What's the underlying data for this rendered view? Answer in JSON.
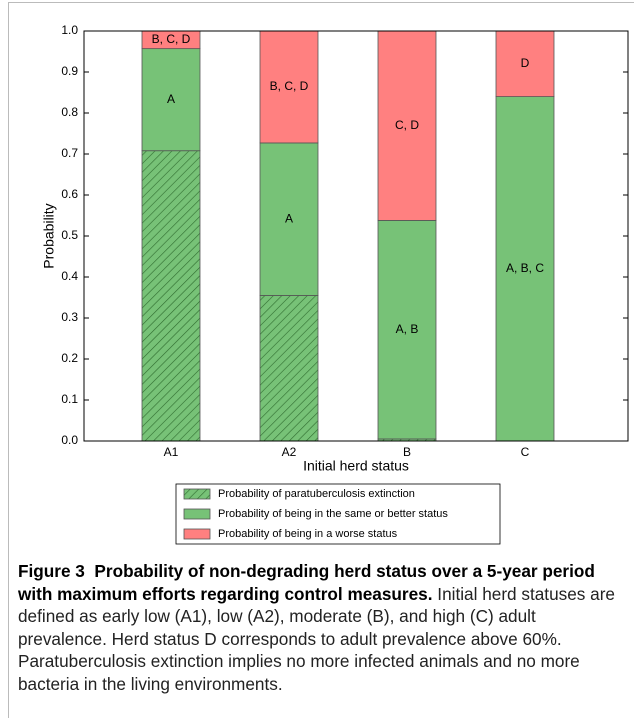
{
  "chart_data": {
    "type": "stacked_bar",
    "ylabel": "Probability",
    "xlabel": "Initial herd status",
    "categories": [
      "A1",
      "A2",
      "B",
      "C"
    ],
    "series": [
      {
        "name": "Probability of paratuberculosis extinction",
        "color": "#77c277",
        "hatch": true,
        "values": [
          0.708,
          0.355,
          0.005,
          0
        ]
      },
      {
        "name": "Probability of being in the same or better status",
        "color": "#77c277",
        "values": [
          0.249,
          0.372,
          0.533,
          0.84
        ],
        "labels": [
          "A",
          "A",
          "A, B",
          "A, B, C"
        ]
      },
      {
        "name": "Probability of being in a worse status",
        "color": "#ff8080",
        "values": [
          0.043,
          0.273,
          0.462,
          0.16
        ],
        "labels": [
          "B, C, D",
          "B, C, D",
          "C, D",
          "D"
        ]
      }
    ],
    "ylim": [
      0,
      1
    ],
    "yticks": [
      {
        "value": 0,
        "label": "0.0"
      },
      0.1,
      0.2,
      0.3,
      0.4,
      0.5,
      0.6,
      0.7,
      0.8,
      0.9,
      {
        "value": 1,
        "label": "1.0"
      }
    ],
    "legend": "bottom"
  },
  "caption": {
    "label": "Figure 3",
    "title": "Probability of non-degrading herd status over a 5-year period with maximum efforts regarding control measures.",
    "text": "Initial herd statuses are defined as early low (A1), low (A2), moderate (B), and high (C) adult prevalence. Herd status D corresponds to adult prevalence above 60%. Paratuberculosis extinction implies no more infected animals and no more bacteria in the living environments."
  }
}
